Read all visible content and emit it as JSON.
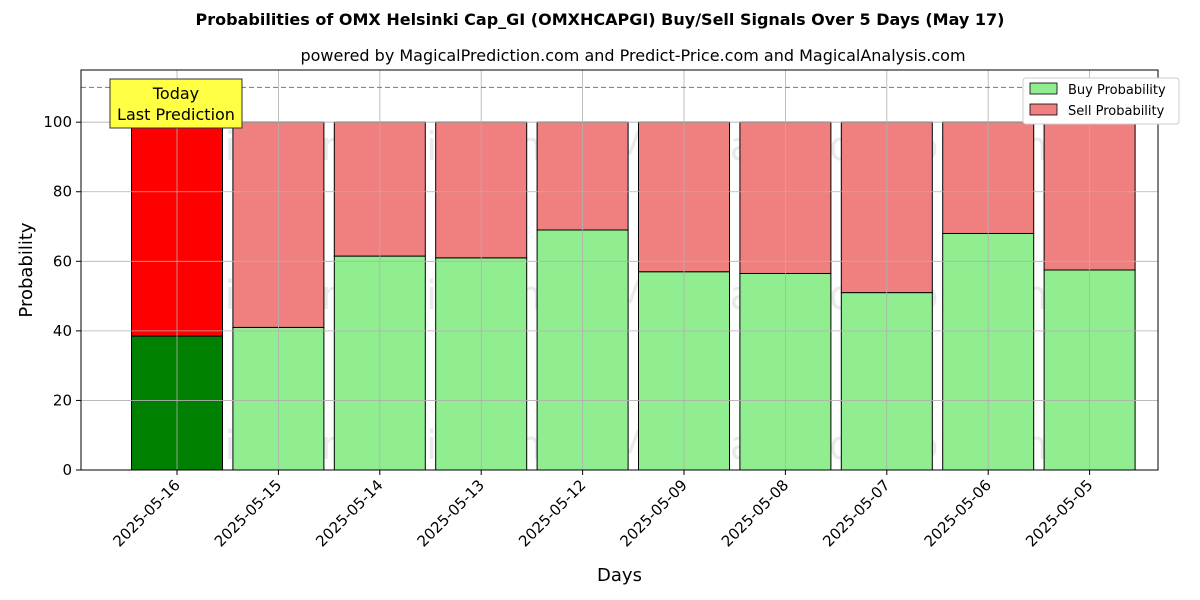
{
  "chart_data": {
    "type": "bar",
    "stacked": true,
    "title": "Probabilities of OMX Helsinki Cap_GI (OMXHCAPGI) Buy/Sell Signals Over 5 Days (May 17)",
    "subtitle": "powered by MagicalPrediction.com and Predict-Price.com and MagicalAnalysis.com",
    "xlabel": "Days",
    "ylabel": "Probability",
    "ylim": [
      0,
      115
    ],
    "yticks": [
      0,
      20,
      40,
      60,
      80,
      100
    ],
    "reference_line": 110,
    "grid": true,
    "legend_position": "top-right",
    "categories": [
      "2025-05-16",
      "2025-05-15",
      "2025-05-14",
      "2025-05-13",
      "2025-05-12",
      "2025-05-09",
      "2025-05-08",
      "2025-05-07",
      "2025-05-06",
      "2025-05-05"
    ],
    "series": [
      {
        "name": "Buy Probability",
        "color": "#90ee90",
        "highlight_color": "#008000",
        "values": [
          38.5,
          41.0,
          61.5,
          61.0,
          69.0,
          57.0,
          56.5,
          51.0,
          68.0,
          57.5
        ]
      },
      {
        "name": "Sell Probability",
        "color": "#f08080",
        "highlight_color": "#ff0000",
        "values": [
          61.5,
          59.0,
          38.5,
          39.0,
          31.0,
          43.0,
          43.5,
          49.0,
          32.0,
          42.5
        ]
      }
    ],
    "annotation": {
      "lines": [
        "Today",
        "Last Prediction"
      ],
      "bg": "#ffff44"
    },
    "watermarks": [
      "MagicalAnalysis.com",
      "MagicalPrediction.com"
    ]
  }
}
